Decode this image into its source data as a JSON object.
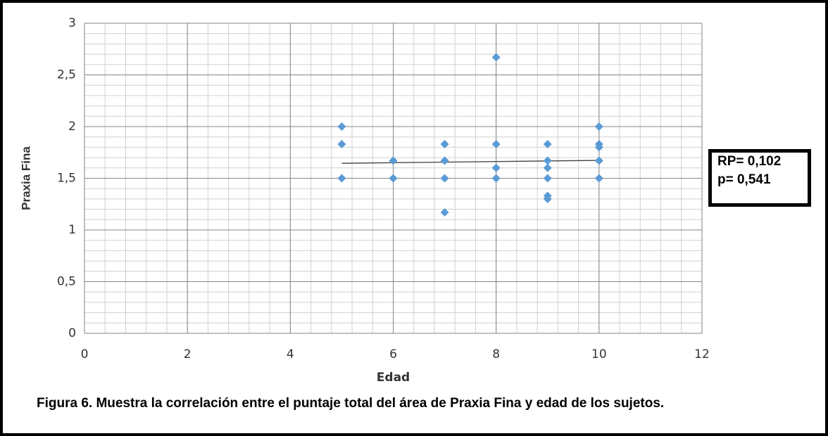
{
  "chart_data": {
    "type": "scatter",
    "xlabel": "Edad",
    "ylabel": "Praxia Fina",
    "x": [
      5,
      5,
      5,
      6,
      6,
      6,
      7,
      7,
      7,
      7,
      7,
      7,
      8,
      8,
      8,
      8,
      9,
      9,
      9,
      9,
      9,
      9,
      10,
      10,
      10,
      10,
      10
    ],
    "series": [
      {
        "name": "Praxia Fina",
        "color": "#5b9bd5",
        "values": [
          2.0,
          1.83,
          1.5,
          1.67,
          1.67,
          1.5,
          1.83,
          1.83,
          1.67,
          1.67,
          1.5,
          1.17,
          2.67,
          1.83,
          1.6,
          1.5,
          1.83,
          1.67,
          1.6,
          1.5,
          1.33,
          1.3,
          2.0,
          1.83,
          1.8,
          1.67,
          1.5
        ]
      }
    ],
    "trendline": {
      "x": [
        5,
        10
      ],
      "y": [
        1.645,
        1.673
      ],
      "color": "#404040"
    },
    "xlim": [
      0,
      12
    ],
    "xticks": [
      0,
      2,
      4,
      6,
      8,
      10,
      12
    ],
    "ylim": [
      0,
      3
    ],
    "yticks": [
      0,
      {
        "value": 0.5,
        "label": "0,5"
      },
      1,
      {
        "value": 1.5,
        "label": "1,5"
      },
      2,
      {
        "value": 2.5,
        "label": "2,5"
      },
      3
    ],
    "grid": true,
    "minor_grid": {
      "x": 0.4,
      "y": 0.1
    },
    "annotations": [
      "RP= 0,102",
      "p= 0,541"
    ],
    "caption": "Figura 6. Muestra la correlación entre el puntaje total del área de Praxia Fina y edad de los sujetos."
  }
}
